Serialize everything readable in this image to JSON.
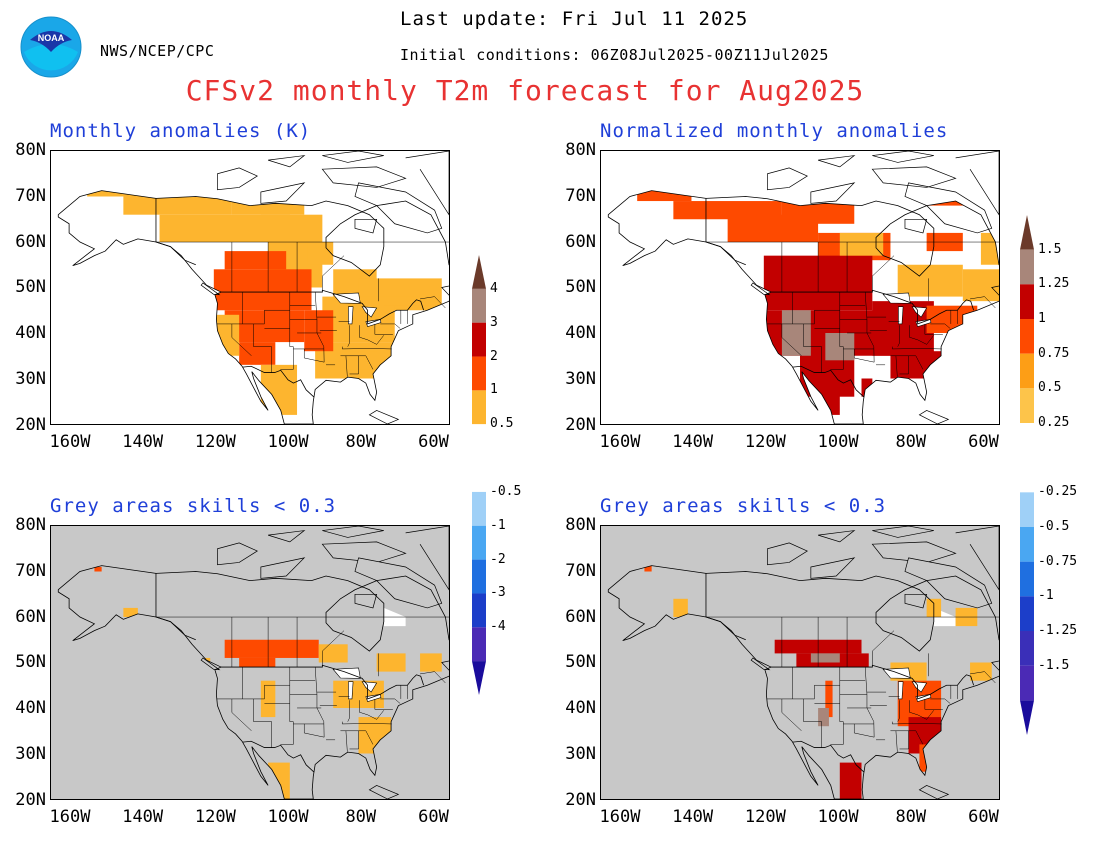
{
  "header": {
    "org": "NWS/NCEP/CPC",
    "last_update": "Last update: Fri Jul 11 2025",
    "initial_conditions": "Initial conditions: 06Z08Jul2025-00Z11Jul2025",
    "title": "CFSv2 monthly T2m forecast for Aug2025",
    "logo_text": "NOAA"
  },
  "panels": {
    "top_left_title": "Monthly anomalies (K)",
    "top_right_title": "Normalized monthly anomalies",
    "bottom_left_title": "Grey areas skills < 0.3",
    "bottom_right_title": "Grey areas skills < 0.3"
  },
  "axes": {
    "lat_labels": [
      "80N",
      "70N",
      "60N",
      "50N",
      "40N",
      "30N",
      "20N"
    ],
    "lon_labels": [
      "160W",
      "140W",
      "120W",
      "100W",
      "80W",
      "60W"
    ]
  },
  "colorbar_left": {
    "labels": [
      "4",
      "3",
      "2",
      "1",
      "0.5",
      "-0.5",
      "-1",
      "-2",
      "-3",
      "-4"
    ]
  },
  "colorbar_right": {
    "labels": [
      "1.5",
      "1.25",
      "1",
      "0.75",
      "0.5",
      "0.25",
      "-0.25",
      "-0.5",
      "-0.75",
      "-1",
      "-1.25",
      "-1.5"
    ]
  },
  "colors": {
    "warm": [
      "#fdb52f",
      "#fe4a00",
      "#c20000",
      "#a8867a",
      "#6b3a2a"
    ],
    "cool": [
      "#9fd0f7",
      "#4aa7f2",
      "#1f6fe0",
      "#1c3ec9",
      "#4b2ab5",
      "#1a0c9c"
    ],
    "skill_mask": "#c8c8c8",
    "title": "#e83232",
    "subtitle": "#1f3fd8"
  }
}
